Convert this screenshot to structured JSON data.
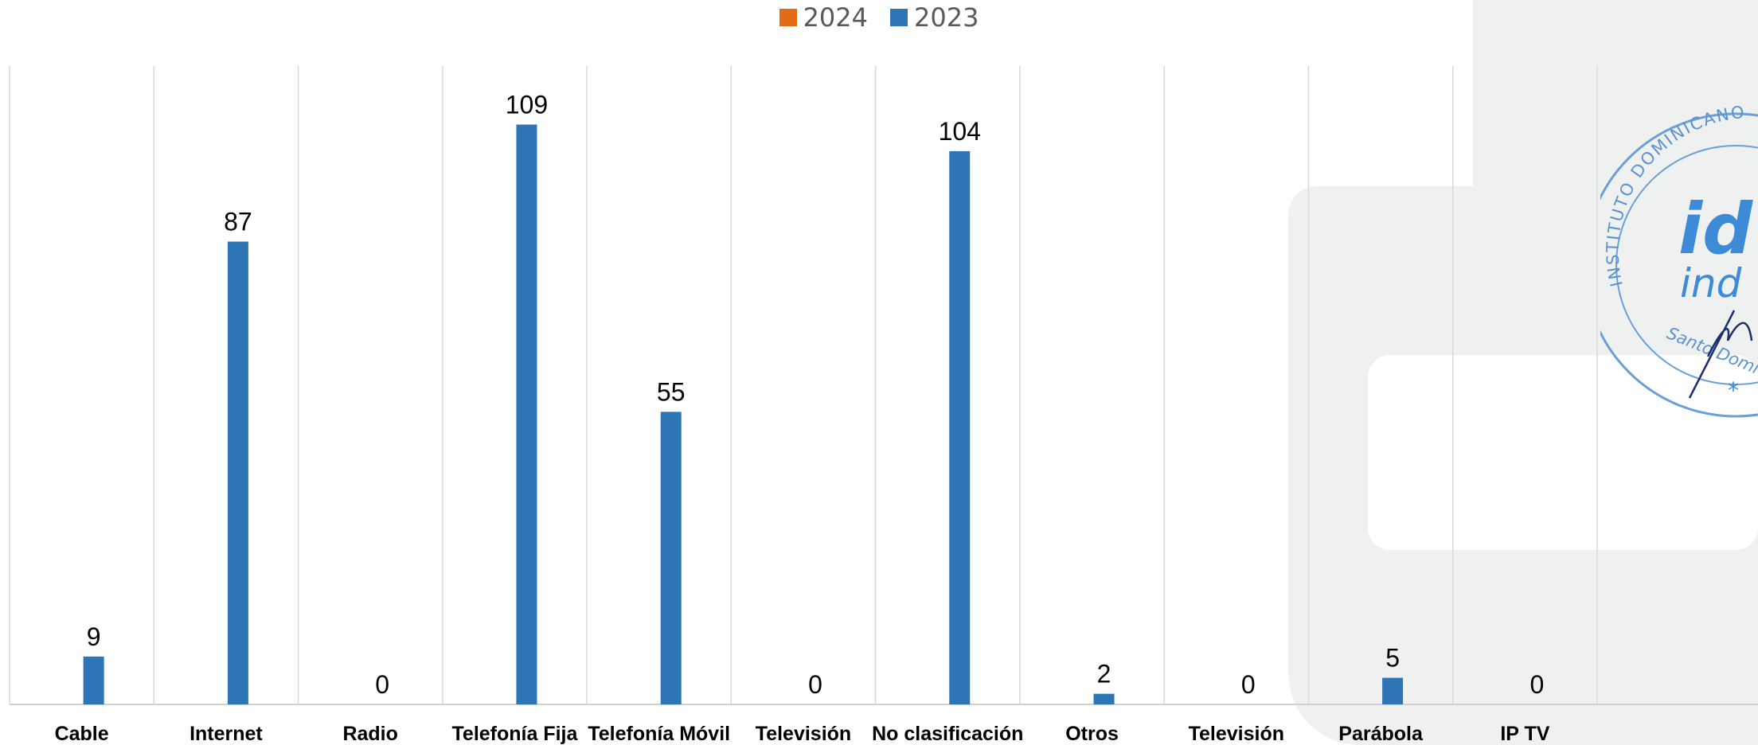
{
  "legend": {
    "items": [
      {
        "label": "2024",
        "color": "#e26b16"
      },
      {
        "label": "2023",
        "color": "#2e75b6"
      }
    ]
  },
  "stamp": {
    "ring_text": "INSTITUTO DOMINICANO D",
    "center_text_1": "id",
    "center_text_2": "ind",
    "city_text": "Santo Domi"
  },
  "chart_data": {
    "type": "bar",
    "categories": [
      "Cable",
      "Internet",
      "Radio",
      "Telefonía Fija",
      "Telefonía Móvil",
      "Televisión",
      "No clasificación",
      "Otros",
      "Televisión",
      "Parábola",
      "IP TV"
    ],
    "series": [
      {
        "name": "2024",
        "color": "#e26b16",
        "values": [
          0,
          0,
          0,
          0,
          0,
          0,
          0,
          0,
          0,
          0,
          0
        ]
      },
      {
        "name": "2023",
        "color": "#2e75b6",
        "values": [
          9,
          87,
          0,
          109,
          55,
          0,
          104,
          2,
          0,
          5,
          0
        ]
      }
    ],
    "data_labels_series": "2023",
    "ylim": [
      0,
      120
    ],
    "grid": "vertical category separators",
    "legend_position": "top"
  }
}
